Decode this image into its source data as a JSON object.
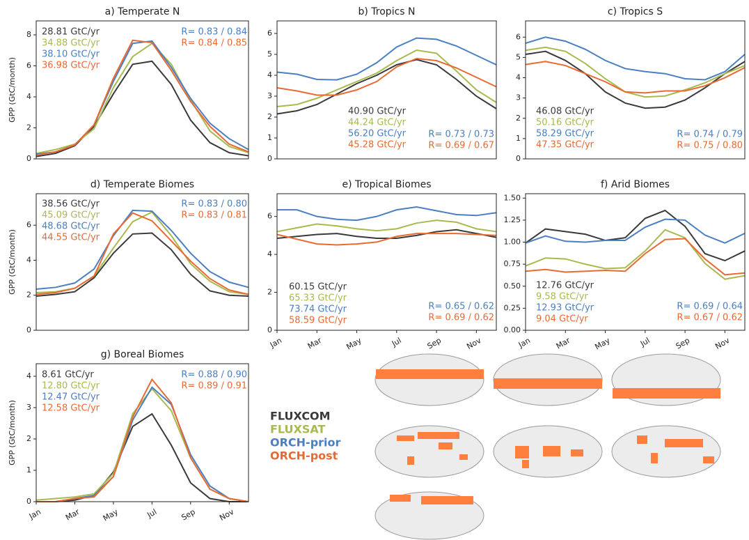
{
  "chart_data": [
    {
      "type": "line",
      "title": "a) Temperate N",
      "y_label": "GPP (GtC/month)",
      "ylim": [
        0,
        8.9
      ],
      "yticks": [
        0,
        2,
        4,
        6,
        8
      ],
      "series": [
        {
          "name": "FLUXCOM",
          "color": "#3a3a3a",
          "values": [
            0.15,
            0.35,
            0.85,
            2.1,
            4.2,
            6.1,
            6.3,
            4.8,
            2.5,
            1.05,
            0.4,
            0.2
          ]
        },
        {
          "name": "FLUXSAT",
          "color": "#a9b94d",
          "values": [
            0.35,
            0.6,
            0.95,
            1.95,
            4.6,
            6.6,
            7.45,
            6.1,
            3.8,
            1.8,
            0.8,
            0.4
          ]
        },
        {
          "name": "ORCH-prior",
          "color": "#4a7fc1",
          "values": [
            0.3,
            0.45,
            0.9,
            2.2,
            5.0,
            7.45,
            7.6,
            5.9,
            3.9,
            2.3,
            1.3,
            0.6
          ]
        },
        {
          "name": "ORCH-post",
          "color": "#e86a33",
          "values": [
            0.25,
            0.45,
            0.9,
            2.2,
            5.2,
            7.65,
            7.5,
            5.7,
            3.7,
            2.1,
            0.95,
            0.45
          ]
        }
      ],
      "annotations": [
        "28.81 GtC/yr",
        "34.88 GtC/yr",
        "38.10 GtC/yr",
        "36.98 GtC/yr"
      ],
      "r_labels": [
        "R= 0.83 / 0.84",
        "R= 0.84 / 0.85"
      ]
    },
    {
      "type": "line",
      "title": "b) Tropics N",
      "ylim": [
        0,
        6.6
      ],
      "yticks": [
        0,
        1,
        2,
        3,
        4,
        5,
        6
      ],
      "series": [
        {
          "color": "#3a3a3a",
          "values": [
            2.15,
            2.3,
            2.6,
            3.1,
            3.6,
            4.0,
            4.5,
            4.75,
            4.5,
            3.8,
            3.0,
            2.4
          ]
        },
        {
          "color": "#a9b94d",
          "values": [
            2.5,
            2.6,
            2.9,
            3.3,
            3.7,
            4.1,
            4.7,
            5.2,
            5.05,
            4.2,
            3.3,
            2.7
          ]
        },
        {
          "color": "#4a7fc1",
          "values": [
            4.15,
            4.05,
            3.8,
            3.78,
            4.05,
            4.6,
            5.35,
            5.78,
            5.72,
            5.4,
            4.95,
            4.5
          ]
        },
        {
          "color": "#e86a33",
          "values": [
            3.4,
            3.25,
            3.05,
            3.05,
            3.3,
            3.7,
            4.4,
            4.8,
            4.7,
            4.35,
            3.9,
            3.45
          ]
        }
      ],
      "annotations": [
        "40.90 GtC/yr",
        "44.24 GtC/yr",
        "56.20 GtC/yr",
        "45.28 GtC/yr"
      ],
      "r_labels": [
        "R= 0.73 / 0.73",
        "R= 0.69 / 0.67"
      ]
    },
    {
      "type": "line",
      "title": "c) Tropics S",
      "ylim": [
        0,
        6.8
      ],
      "yticks": [
        0,
        1,
        2,
        3,
        4,
        5,
        6
      ],
      "series": [
        {
          "color": "#3a3a3a",
          "values": [
            5.15,
            5.3,
            4.85,
            4.2,
            3.3,
            2.75,
            2.5,
            2.55,
            2.9,
            3.5,
            4.2,
            4.8
          ]
        },
        {
          "color": "#a9b94d",
          "values": [
            5.35,
            5.5,
            5.3,
            4.7,
            3.95,
            3.3,
            3.05,
            3.1,
            3.4,
            3.75,
            4.2,
            4.6
          ]
        },
        {
          "color": "#4a7fc1",
          "values": [
            5.7,
            6.0,
            5.8,
            5.4,
            4.85,
            4.45,
            4.3,
            4.2,
            3.95,
            3.9,
            4.3,
            5.15
          ]
        },
        {
          "color": "#e86a33",
          "values": [
            4.65,
            4.8,
            4.6,
            4.2,
            3.8,
            3.3,
            3.25,
            3.35,
            3.35,
            3.6,
            4.0,
            4.5
          ]
        }
      ],
      "annotations": [
        "46.08 GtC/yr",
        "50.16 GtC/yr",
        "58.29 GtC/yr",
        "47.35 GtC/yr"
      ],
      "r_labels": [
        "R= 0.74 / 0.79",
        "R= 0.75 / 0.80"
      ]
    },
    {
      "type": "line",
      "title": "d) Temperate Biomes",
      "y_label": "GPP (GtC/month)",
      "ylim": [
        0,
        7.8
      ],
      "yticks": [
        0,
        2,
        4,
        6
      ],
      "series": [
        {
          "color": "#3a3a3a",
          "values": [
            1.95,
            2.05,
            2.2,
            3.0,
            4.4,
            5.5,
            5.55,
            4.6,
            3.2,
            2.25,
            2.0,
            1.95
          ]
        },
        {
          "color": "#a9b94d",
          "values": [
            2.15,
            2.2,
            2.4,
            3.1,
            4.7,
            6.2,
            6.75,
            5.4,
            3.8,
            2.8,
            2.2,
            2.05
          ]
        },
        {
          "color": "#4a7fc1",
          "values": [
            2.35,
            2.45,
            2.7,
            3.5,
            5.4,
            6.85,
            6.8,
            5.7,
            4.4,
            3.35,
            2.75,
            2.45
          ]
        },
        {
          "color": "#e86a33",
          "values": [
            2.05,
            2.15,
            2.4,
            3.1,
            5.5,
            6.7,
            6.25,
            5.1,
            3.95,
            2.95,
            2.3,
            2.05
          ]
        }
      ],
      "annotations": [
        "38.56 GtC/yr",
        "45.09 GtC/yr",
        "48.68 GtC/yr",
        "44.55 GtC/yr"
      ],
      "r_labels": [
        "R= 0.83 / 0.80",
        "R= 0.83 / 0.81"
      ]
    },
    {
      "type": "line",
      "title": "e) Tropical Biomes",
      "ylim": [
        0,
        7.2
      ],
      "yticks": [
        0,
        2,
        4,
        6
      ],
      "categories": [
        "Jan",
        null,
        "Mar",
        null,
        "May",
        null,
        "Jul",
        null,
        "Sep",
        null,
        "Nov",
        null
      ],
      "series": [
        {
          "color": "#3a3a3a",
          "values": [
            4.85,
            4.95,
            5.05,
            5.1,
            4.95,
            4.85,
            4.85,
            5.0,
            5.2,
            5.3,
            5.1,
            4.9
          ]
        },
        {
          "color": "#a9b94d",
          "values": [
            5.2,
            5.4,
            5.6,
            5.5,
            5.35,
            5.25,
            5.35,
            5.65,
            5.8,
            5.7,
            5.35,
            5.2
          ]
        },
        {
          "color": "#4a7fc1",
          "values": [
            6.35,
            6.35,
            6.0,
            5.85,
            5.8,
            6.0,
            6.35,
            6.5,
            6.3,
            6.1,
            6.05,
            6.2
          ]
        },
        {
          "color": "#e86a33",
          "values": [
            5.05,
            4.8,
            4.55,
            4.5,
            4.55,
            4.65,
            4.95,
            5.1,
            5.1,
            5.1,
            5.05,
            5.0
          ]
        }
      ],
      "annotations": [
        "60.15 GtC/yr",
        "65.33 GtC/yr",
        "73.74 GtC/yr",
        "58.59 GtC/yr"
      ],
      "r_labels": [
        "R= 0.65 / 0.62",
        "R= 0.69 / 0.62"
      ]
    },
    {
      "type": "line",
      "title": "f) Arid Biomes",
      "ylim": [
        0,
        1.55
      ],
      "yticks": [
        {
          "value": 0,
          "label": "0.00"
        },
        {
          "value": 0.25,
          "label": "0.25"
        },
        {
          "value": 0.5,
          "label": "0.50"
        },
        {
          "value": 0.75,
          "label": "0.75"
        },
        {
          "value": 1,
          "label": "1.00"
        },
        {
          "value": 1.25,
          "label": "1.25"
        },
        {
          "value": 1.5,
          "label": "1.50"
        }
      ],
      "categories": [
        "Jan",
        null,
        "Mar",
        null,
        "May",
        null,
        "Jul",
        null,
        "Sep",
        null,
        "Nov",
        null
      ],
      "series": [
        {
          "color": "#3a3a3a",
          "values": [
            0.99,
            1.15,
            1.12,
            1.09,
            1.02,
            1.05,
            1.27,
            1.36,
            1.18,
            0.87,
            0.79,
            0.9
          ]
        },
        {
          "color": "#a9b94d",
          "values": [
            0.73,
            0.82,
            0.81,
            0.75,
            0.7,
            0.71,
            0.9,
            1.14,
            1.05,
            0.76,
            0.58,
            0.62
          ]
        },
        {
          "color": "#4a7fc1",
          "values": [
            0.99,
            1.07,
            1.01,
            1.0,
            1.02,
            1.02,
            1.17,
            1.26,
            1.25,
            1.08,
            0.99,
            1.1
          ]
        },
        {
          "color": "#e86a33",
          "values": [
            0.67,
            0.69,
            0.66,
            0.67,
            0.68,
            0.67,
            0.87,
            1.03,
            1.04,
            0.81,
            0.63,
            0.65
          ]
        }
      ],
      "annotations": [
        "12.76 GtC/yr",
        "9.58 GtC/yr",
        "12.93 GtC/yr",
        "9.04 GtC/yr"
      ],
      "r_labels": [
        "R= 0.69 / 0.64",
        "R= 0.67 / 0.62"
      ]
    },
    {
      "type": "line",
      "title": "g) Boreal Biomes",
      "y_label": "GPP (GtC/month)",
      "ylim": [
        0,
        4.4
      ],
      "yticks": [
        0,
        1,
        2,
        3,
        4
      ],
      "categories": [
        "Jan",
        null,
        "Mar",
        null,
        "May",
        null,
        "Jul",
        null,
        "Sep",
        null,
        "Nov",
        null
      ],
      "series": [
        {
          "color": "#3a3a3a",
          "values": [
            0.0,
            0.0,
            0.05,
            0.2,
            0.95,
            2.4,
            2.8,
            1.8,
            0.6,
            0.1,
            0.0,
            0.0
          ]
        },
        {
          "color": "#a9b94d",
          "values": [
            0.05,
            0.1,
            0.15,
            0.25,
            0.9,
            2.8,
            3.6,
            2.9,
            1.4,
            0.4,
            0.1,
            0.0
          ]
        },
        {
          "color": "#4a7fc1",
          "values": [
            0.0,
            0.0,
            0.1,
            0.2,
            0.8,
            2.6,
            3.65,
            3.1,
            1.5,
            0.5,
            0.1,
            0.0
          ]
        },
        {
          "color": "#e86a33",
          "values": [
            0.0,
            0.0,
            0.1,
            0.15,
            0.8,
            2.7,
            3.9,
            3.15,
            1.4,
            0.4,
            0.1,
            0.0
          ]
        }
      ],
      "annotations": [
        "8.61 GtC/yr",
        "12.80 GtC/yr",
        "12.47 GtC/yr",
        "12.58 GtC/yr"
      ],
      "r_labels": [
        "R= 0.88 / 0.90",
        "R= 0.89 / 0.91"
      ]
    }
  ]
}
